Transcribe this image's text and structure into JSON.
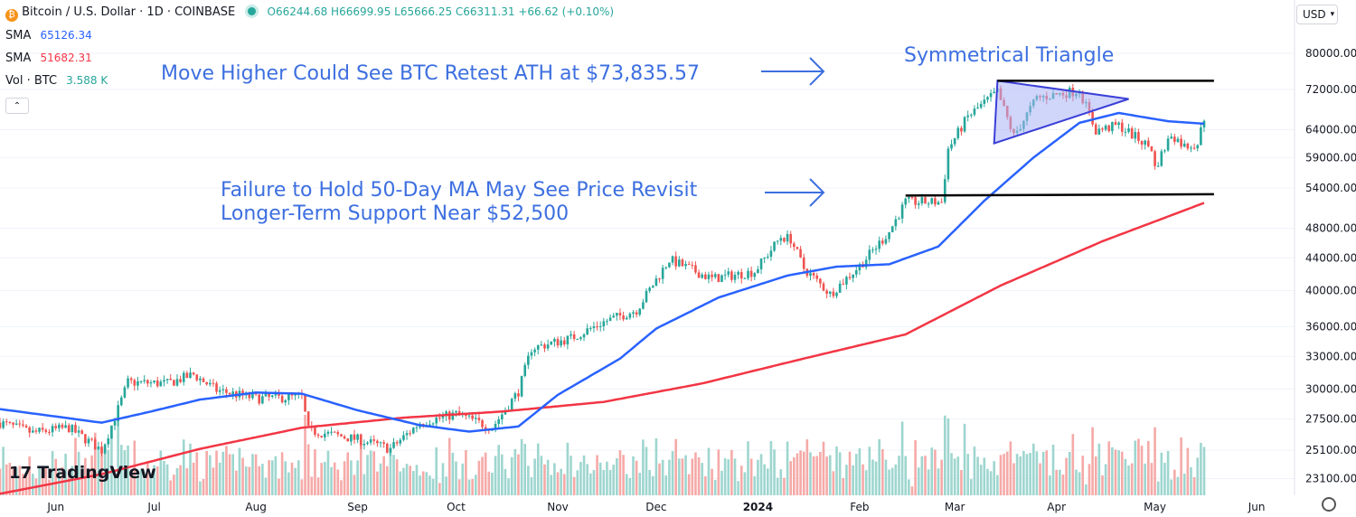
{
  "header": {
    "symbol": "Bitcoin / U.S. Dollar · 1D · COINBASE",
    "ohlc": "O66244.68 H66699.95 L65666.25 C66311.31 +66.62 (+0.10%)",
    "currency": "USD",
    "collapse_glyph": "⌃",
    "logo_text": "TradingView",
    "logo_mark": "17",
    "icons": [
      "bitcoin-logo-icon",
      "market-open-dot-icon",
      "chevron-down-icon",
      "settings-icon"
    ]
  },
  "legend": [
    {
      "label": "SMA",
      "value": "65126.34",
      "color": "#2962ff"
    },
    {
      "label": "SMA",
      "value": "51682.31",
      "color": "#f23645"
    },
    {
      "label": "Vol · BTC",
      "value": "3.588 K",
      "color": "#26a69a"
    }
  ],
  "colors": {
    "up": "#26a69a",
    "down": "#ef5350",
    "vol_up": "#9ed6cf",
    "vol_down": "#f5aaa8",
    "sma50": "#2962ff",
    "sma200": "#f23645",
    "annotation": "#3d6fe0",
    "triangle_fill": "#a9b2f5",
    "triangle_stroke": "#3a3fd8"
  },
  "chart_data": {
    "type": "candlestick",
    "title": "Bitcoin / U.S. Dollar · 1D · COINBASE",
    "y_scale": "log",
    "ylim": [
      22000,
      85000
    ],
    "y_ticks": [
      "80000.00",
      "72000.00",
      "64000.00",
      "59000.00",
      "54000.00",
      "48000.00",
      "44000.00",
      "40000.00",
      "36000.00",
      "33000.00",
      "30000.00",
      "27500.00",
      "25100.00",
      "23100.00"
    ],
    "x_ticks": [
      {
        "label": "Jun",
        "date": "2023-06-01"
      },
      {
        "label": "Jul",
        "date": "2023-07-01"
      },
      {
        "label": "Aug",
        "date": "2023-08-01"
      },
      {
        "label": "Sep",
        "date": "2023-09-01"
      },
      {
        "label": "Oct",
        "date": "2023-10-01"
      },
      {
        "label": "Nov",
        "date": "2023-11-01"
      },
      {
        "label": "Dec",
        "date": "2023-12-01"
      },
      {
        "label": "2024",
        "date": "2024-01-01",
        "bold": true
      },
      {
        "label": "Feb",
        "date": "2024-02-01"
      },
      {
        "label": "Mar",
        "date": "2024-03-01"
      },
      {
        "label": "Apr",
        "date": "2024-04-01"
      },
      {
        "label": "May",
        "date": "2024-05-01"
      },
      {
        "label": "Jun",
        "date": "2024-06-01"
      }
    ],
    "x_range": [
      "2023-05-15",
      "2024-06-12"
    ],
    "last_date": "2024-05-16",
    "price_path": [
      [
        "2023-05-15",
        27200
      ],
      [
        "2023-05-25",
        26400
      ],
      [
        "2023-06-05",
        26800
      ],
      [
        "2023-06-15",
        25100
      ],
      [
        "2023-06-20",
        28300
      ],
      [
        "2023-06-23",
        30600
      ],
      [
        "2023-07-05",
        30500
      ],
      [
        "2023-07-13",
        31300
      ],
      [
        "2023-07-20",
        29900
      ],
      [
        "2023-08-01",
        29200
      ],
      [
        "2023-08-15",
        29300
      ],
      [
        "2023-08-17",
        26600
      ],
      [
        "2023-09-01",
        25900
      ],
      [
        "2023-09-11",
        25200
      ],
      [
        "2023-09-20",
        27200
      ],
      [
        "2023-10-01",
        27900
      ],
      [
        "2023-10-12",
        26800
      ],
      [
        "2023-10-20",
        29800
      ],
      [
        "2023-10-24",
        33800
      ],
      [
        "2023-11-05",
        34800
      ],
      [
        "2023-11-15",
        36500
      ],
      [
        "2023-11-25",
        37800
      ],
      [
        "2023-12-05",
        43800
      ],
      [
        "2023-12-18",
        41400
      ],
      [
        "2023-12-31",
        42300
      ],
      [
        "2024-01-08",
        46800
      ],
      [
        "2024-01-11",
        46500
      ],
      [
        "2024-01-15",
        42700
      ],
      [
        "2024-01-23",
        39600
      ],
      [
        "2024-02-01",
        43000
      ],
      [
        "2024-02-10",
        47500
      ],
      [
        "2024-02-15",
        51800
      ],
      [
        "2024-02-26",
        51800
      ],
      [
        "2024-02-28",
        60500
      ],
      [
        "2024-03-05",
        66500
      ],
      [
        "2024-03-14",
        71500
      ],
      [
        "2024-03-19",
        62800
      ],
      [
        "2024-03-26",
        70200
      ],
      [
        "2024-04-08",
        71800
      ],
      [
        "2024-04-13",
        63800
      ],
      [
        "2024-04-20",
        64800
      ],
      [
        "2024-04-30",
        60600
      ],
      [
        "2024-05-01",
        57200
      ],
      [
        "2024-05-06",
        63200
      ],
      [
        "2024-05-10",
        61000
      ],
      [
        "2024-05-14",
        61500
      ],
      [
        "2024-05-16",
        66311
      ]
    ],
    "sma50_path": [
      [
        "2023-05-15",
        28300
      ],
      [
        "2023-06-15",
        27200
      ],
      [
        "2023-06-30",
        28100
      ],
      [
        "2023-07-15",
        29100
      ],
      [
        "2023-08-01",
        29700
      ],
      [
        "2023-08-15",
        29600
      ],
      [
        "2023-09-01",
        28200
      ],
      [
        "2023-09-20",
        27000
      ],
      [
        "2023-10-05",
        26500
      ],
      [
        "2023-10-20",
        26900
      ],
      [
        "2023-11-01",
        29500
      ],
      [
        "2023-11-20",
        32800
      ],
      [
        "2023-12-01",
        35800
      ],
      [
        "2023-12-20",
        39200
      ],
      [
        "2024-01-10",
        41800
      ],
      [
        "2024-01-25",
        42900
      ],
      [
        "2024-02-10",
        43200
      ],
      [
        "2024-02-25",
        45500
      ],
      [
        "2024-03-10",
        52000
      ],
      [
        "2024-03-25",
        59000
      ],
      [
        "2024-04-08",
        65300
      ],
      [
        "2024-04-20",
        67200
      ],
      [
        "2024-05-05",
        65600
      ],
      [
        "2024-05-16",
        65126
      ]
    ],
    "sma200_path": [
      [
        "2023-05-15",
        22100
      ],
      [
        "2023-06-15",
        23400
      ],
      [
        "2023-07-15",
        25200
      ],
      [
        "2023-08-15",
        26800
      ],
      [
        "2023-09-15",
        27600
      ],
      [
        "2023-10-15",
        28100
      ],
      [
        "2023-11-15",
        28900
      ],
      [
        "2023-12-15",
        30500
      ],
      [
        "2024-01-15",
        32800
      ],
      [
        "2024-02-15",
        35200
      ],
      [
        "2024-03-15",
        40600
      ],
      [
        "2024-04-15",
        46200
      ],
      [
        "2024-05-16",
        51682
      ]
    ],
    "series": [
      {
        "name": "SMA",
        "value": "65126.34"
      },
      {
        "name": "SMA",
        "value": "51682.31"
      },
      {
        "name": "Vol · BTC",
        "value": "3.588 K"
      }
    ],
    "support_line": {
      "from": [
        "2024-02-15",
        52800
      ],
      "to": [
        "2024-05-19",
        53000
      ]
    },
    "resistance_line": {
      "from": [
        "2024-03-14",
        73835.57
      ],
      "to": [
        "2024-05-19",
        73835.57
      ]
    },
    "triangle": [
      [
        "2024-03-14",
        73835.57
      ],
      [
        "2024-04-23",
        70000
      ],
      [
        "2024-03-13",
        61500
      ]
    ],
    "annotations": [
      {
        "text": "Symmetrical Triangle"
      },
      {
        "text": "Move Higher Could See BTC Retest ATH at $73,835.57"
      },
      {
        "text": "Failure to Hold 50-Day MA May See Price Revisit"
      },
      {
        "text": "Longer-Term Support Near $52,500"
      }
    ]
  }
}
